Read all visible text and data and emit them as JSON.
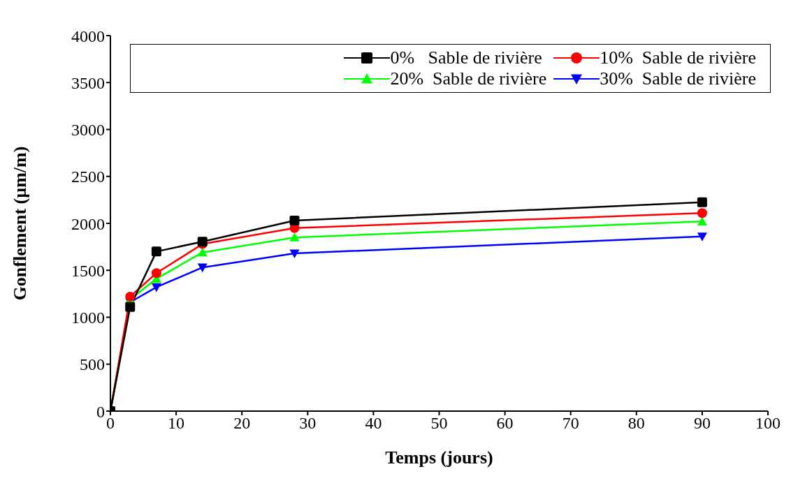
{
  "chart_data": {
    "type": "line",
    "xlabel": "Temps (jours)",
    "ylabel": "Gonflement (µm/m)",
    "x": [
      0,
      3,
      7,
      14,
      28,
      90
    ],
    "series": [
      {
        "name": "0%   Sable de rivière",
        "color": "#000000",
        "marker": "square",
        "values": [
          0,
          1110,
          1700,
          1805,
          2030,
          2225
        ]
      },
      {
        "name": "10%  Sable de rivière",
        "color": "#ff0000",
        "marker": "circle",
        "values": [
          0,
          1220,
          1470,
          1780,
          1950,
          2110
        ]
      },
      {
        "name": "20%  Sable de rivière",
        "color": "#00ff00",
        "marker": "triangle",
        "values": [
          0,
          1190,
          1410,
          1690,
          1850,
          2020
        ]
      },
      {
        "name": "30%  Sable de rivière",
        "color": "#0000ff",
        "marker": "triangle-down",
        "values": [
          0,
          1160,
          1320,
          1530,
          1680,
          1860
        ]
      }
    ],
    "xlim": [
      0,
      100
    ],
    "xticks": [
      0,
      10,
      20,
      30,
      40,
      50,
      60,
      70,
      80,
      90,
      100
    ],
    "ylim": [
      0,
      4000
    ],
    "yticks": [
      0,
      500,
      1000,
      1500,
      2000,
      2500,
      3000,
      3500,
      4000
    ],
    "legend": "top"
  }
}
